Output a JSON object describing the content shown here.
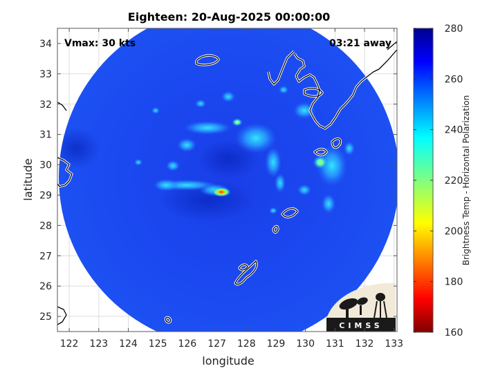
{
  "title": "Eighteen: 20-Aug-2025 00:00:00",
  "vmax_text": "Vmax: 30 kts",
  "time_away_text": "03:21 away",
  "xlabel": "longitude",
  "ylabel": "latitude",
  "colorbar_label": "Brightness Temp - Horizontal Polarization",
  "logo_text": "CIMSS",
  "chart_data": {
    "type": "heatmap",
    "x_ticks": [
      "122",
      "123",
      "124",
      "125",
      "126",
      "127",
      "128",
      "129",
      "130",
      "131",
      "132",
      "133"
    ],
    "y_ticks": [
      "25",
      "26",
      "27",
      "28",
      "29",
      "30",
      "31",
      "32",
      "33",
      "34"
    ],
    "xlim": [
      121.6,
      133.1
    ],
    "ylim": [
      24.5,
      34.5
    ],
    "grid": true,
    "colorbar": {
      "ticks": [
        "280",
        "260",
        "240",
        "220",
        "200",
        "180",
        "160"
      ],
      "range": [
        160,
        280
      ],
      "colormap": "jet"
    },
    "swath_center": {
      "lon": 127.4,
      "lat": 29.45
    },
    "features": [
      {
        "name": "hot spot",
        "lon": 127.1,
        "lat": 29.0,
        "value": 195
      },
      {
        "name": "hot spot",
        "lon": 127.6,
        "lat": 31.3,
        "value": 215
      },
      {
        "name": "hot spot",
        "lon": 130.5,
        "lat": 29.9,
        "value": 220
      },
      {
        "name": "rain band",
        "lon": 125.5,
        "lat": 29.1,
        "value": 235
      },
      {
        "name": "rain band",
        "lon": 128.2,
        "lat": 30.5,
        "value": 240
      },
      {
        "name": "rain band",
        "lon": 130.8,
        "lat": 28.9,
        "value": 238
      }
    ]
  }
}
